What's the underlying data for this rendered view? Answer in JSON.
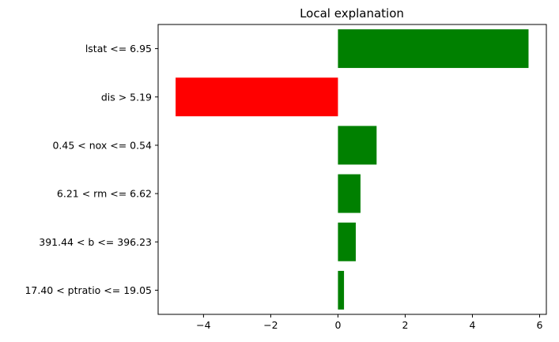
{
  "chart_data": {
    "type": "bar",
    "orientation": "horizontal",
    "title": "Local explanation",
    "xlabel": "",
    "ylabel": "",
    "categories": [
      "lstat <= 6.95",
      "dis > 5.19",
      "0.45 < nox <= 0.54",
      "6.21 < rm <= 6.62",
      "391.44 < b <= 396.23",
      "17.40 < ptratio <= 19.05"
    ],
    "values": [
      5.67,
      -4.83,
      1.15,
      0.67,
      0.53,
      0.18
    ],
    "xlim": [
      -5.35,
      6.2
    ],
    "xticks": [
      -4,
      -2,
      0,
      2,
      4,
      6
    ],
    "xtick_labels": [
      "−4",
      "−2",
      "0",
      "2",
      "4",
      "6"
    ],
    "positive_color": "#008000",
    "negative_color": "#ff0000",
    "grid": false,
    "legend": "none"
  }
}
